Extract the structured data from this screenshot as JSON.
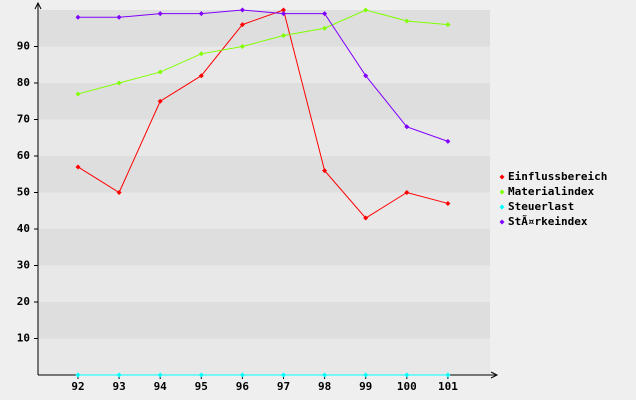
{
  "chart_data": {
    "type": "line",
    "categories": [
      "92",
      "93",
      "94",
      "95",
      "96",
      "97",
      "98",
      "99",
      "100",
      "101"
    ],
    "series": [
      {
        "name": "Einflussbereich",
        "color": "#ff0000",
        "values": [
          57,
          50,
          75,
          82,
          96,
          100,
          56,
          43,
          50,
          47
        ]
      },
      {
        "name": "Materialindex",
        "color": "#80ff00",
        "values": [
          77,
          80,
          83,
          88,
          90,
          93,
          95,
          100,
          97,
          96
        ]
      },
      {
        "name": "Steuerlast",
        "color": "#00ffff",
        "values": [
          0,
          0,
          0,
          0,
          0,
          0,
          0,
          0,
          0,
          0
        ]
      },
      {
        "name": "StÃ¤rkeindex",
        "color": "#8000ff",
        "values": [
          98,
          98,
          99,
          99,
          100,
          99,
          99,
          82,
          68,
          64
        ]
      }
    ],
    "ylim": [
      0,
      100
    ],
    "yticks": [
      10,
      20,
      30,
      40,
      50,
      60,
      70,
      80,
      90
    ],
    "grid": true,
    "legend": "right"
  }
}
